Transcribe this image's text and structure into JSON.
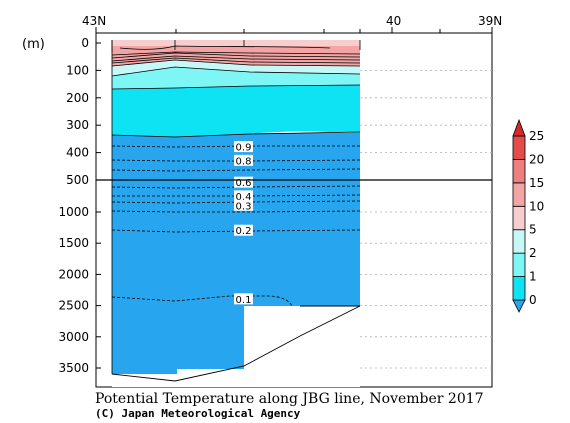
{
  "chart_data": {
    "type": "contour-section",
    "title": "Potential Temperature along JBG line, November 2017",
    "credit": "(C) Japan Meteorological Agency",
    "ylabel": "(m)",
    "latitude_ticks": [
      "43N",
      "40",
      "39N"
    ],
    "depth_axis_upper": {
      "range": [
        0,
        500
      ],
      "ticks": [
        0,
        100,
        200,
        300,
        400,
        500
      ]
    },
    "depth_axis_lower": {
      "range": [
        500,
        3800
      ],
      "ticks": [
        1000,
        1500,
        2000,
        2500,
        3000,
        3500
      ]
    },
    "colorbar": {
      "levels": [
        0,
        1,
        2,
        5,
        10,
        15,
        20,
        25
      ],
      "colors": [
        "#27a6ef",
        "#0ee3f4",
        "#7ef6f6",
        "#c6f8f8",
        "#f7cdcd",
        "#f3a5a5",
        "#ee7f7f",
        "#e44c4c",
        "#d52929"
      ]
    },
    "contour_labels": [
      {
        "value": "0.9",
        "depth": 380
      },
      {
        "value": "0.8",
        "depth": 430
      },
      {
        "value": "0.6",
        "depth": 530
      },
      {
        "value": "0.4",
        "depth": 750
      },
      {
        "value": "0.3",
        "depth": 900
      },
      {
        "value": "0.2",
        "depth": 1300
      },
      {
        "value": "0.1",
        "depth": 2400
      }
    ]
  }
}
